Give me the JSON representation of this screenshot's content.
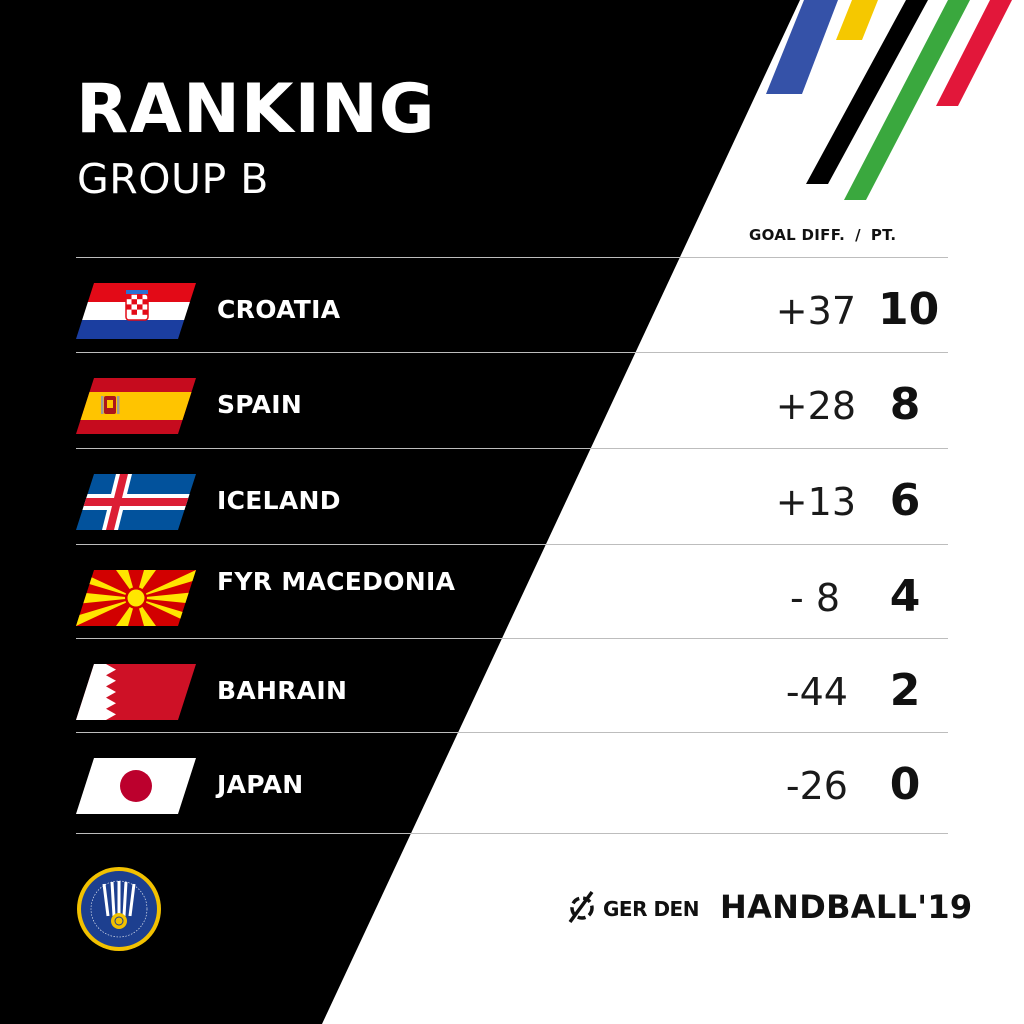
{
  "header": {
    "title": "RANKING",
    "subtitle": "GROUP B",
    "column_goal_diff": "GOAL DIFF.",
    "column_separator": "/",
    "column_points": "PT."
  },
  "standings": [
    {
      "team": "CROATIA",
      "flag_icon": "croatia-flag-icon",
      "goal_diff": "+37",
      "points": "10"
    },
    {
      "team": "SPAIN",
      "flag_icon": "spain-flag-icon",
      "goal_diff": "+28",
      "points": "8"
    },
    {
      "team": "ICELAND",
      "flag_icon": "iceland-flag-icon",
      "goal_diff": "+13",
      "points": "6"
    },
    {
      "team": "FYR MACEDONIA",
      "flag_icon": "macedonia-flag-icon",
      "goal_diff": "- 8",
      "points": "4"
    },
    {
      "team": "BAHRAIN",
      "flag_icon": "bahrain-flag-icon",
      "goal_diff": "-44",
      "points": "2"
    },
    {
      "team": "JAPAN",
      "flag_icon": "japan-flag-icon",
      "goal_diff": "-26",
      "points": "0"
    }
  ],
  "footer": {
    "federation_logo": "ihf-logo-icon",
    "host_mark": "GER DEN",
    "tournament": "HANDBALL'19"
  },
  "colors": {
    "background_dark": "#000000",
    "background_light": "#ffffff",
    "stripe_blue": "#3552a8",
    "stripe_yellow": "#f5c800",
    "stripe_black": "#000000",
    "stripe_green": "#3aa83e",
    "stripe_red": "#e2173a"
  }
}
